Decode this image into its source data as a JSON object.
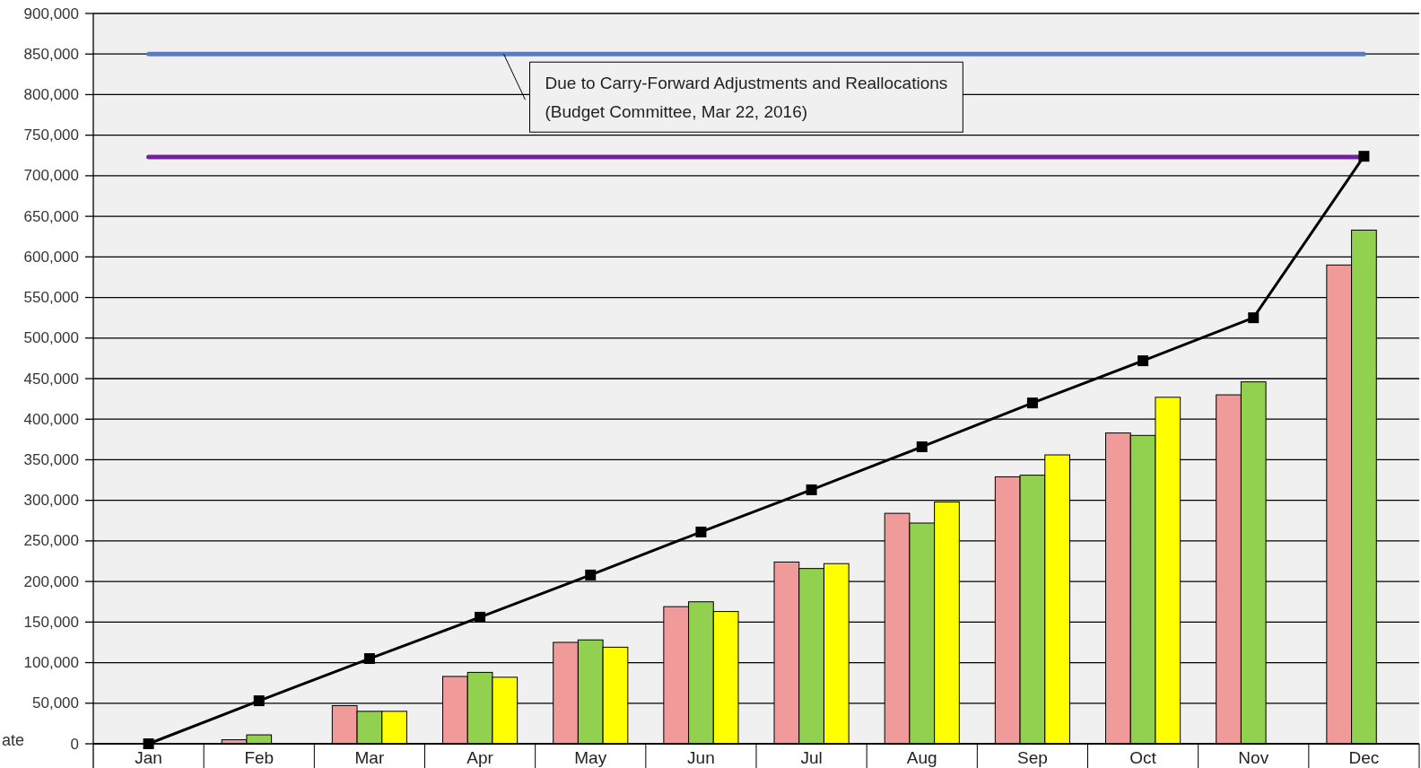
{
  "chart_data": {
    "type": "bar",
    "categories": [
      "Jan",
      "Feb",
      "Mar",
      "Apr",
      "May",
      "Jun",
      "Jul",
      "Aug",
      "Sep",
      "Oct",
      "Nov",
      "Dec"
    ],
    "series": [
      {
        "color": "#f09a9a",
        "values": [
          0,
          5000,
          47000,
          83000,
          125000,
          169000,
          224000,
          284000,
          329000,
          383000,
          430000,
          590000
        ]
      },
      {
        "color": "#92d050",
        "values": [
          0,
          11000,
          40000,
          88000,
          128000,
          175000,
          216000,
          272000,
          331000,
          380000,
          446000,
          633000
        ]
      },
      {
        "color": "#ffff00",
        "values": [
          0,
          null,
          40000,
          82000,
          119000,
          163000,
          222000,
          298000,
          356000,
          427000,
          null,
          null
        ]
      },
      {
        "type": "line",
        "color": "#000000",
        "marker": "square",
        "values": [
          0,
          53000,
          105000,
          156000,
          208000,
          261000,
          313000,
          366000,
          420000,
          472000,
          525000,
          724000
        ]
      }
    ],
    "ylim": [
      0,
      900000
    ],
    "yticks": [
      0,
      {
        "value": 50000,
        "label": "50,000"
      },
      {
        "value": 100000,
        "label": "100,000"
      },
      {
        "value": 150000,
        "label": "150,000"
      },
      {
        "value": 200000,
        "label": "200,000"
      },
      {
        "value": 250000,
        "label": "250,000"
      },
      {
        "value": 300000,
        "label": "300,000"
      },
      {
        "value": 350000,
        "label": "350,000"
      },
      {
        "value": 400000,
        "label": "400,000"
      },
      {
        "value": 450000,
        "label": "450,000"
      },
      {
        "value": 500000,
        "label": "500,000"
      },
      {
        "value": 550000,
        "label": "550,000"
      },
      {
        "value": 600000,
        "label": "600,000"
      },
      {
        "value": 650000,
        "label": "650,000"
      },
      {
        "value": 700000,
        "label": "700,000"
      },
      {
        "value": 750000,
        "label": "750,000"
      },
      {
        "value": 800000,
        "label": "800,000"
      },
      {
        "value": 850000,
        "label": "850,000"
      },
      {
        "value": 900000,
        "label": "900,000"
      }
    ],
    "grid": "y",
    "ref_lines": [
      {
        "axis": "y",
        "value": 850000,
        "color": "#5a7cbf"
      },
      {
        "axis": "y",
        "value": 723000,
        "color": "#7320a0"
      }
    ],
    "annotations": [
      {
        "text": "Due to Carry-Forward Adjustments and Reallocations\n(Budget Committee, Mar 22, 2016)",
        "y": 850000
      },
      "ate"
    ]
  }
}
